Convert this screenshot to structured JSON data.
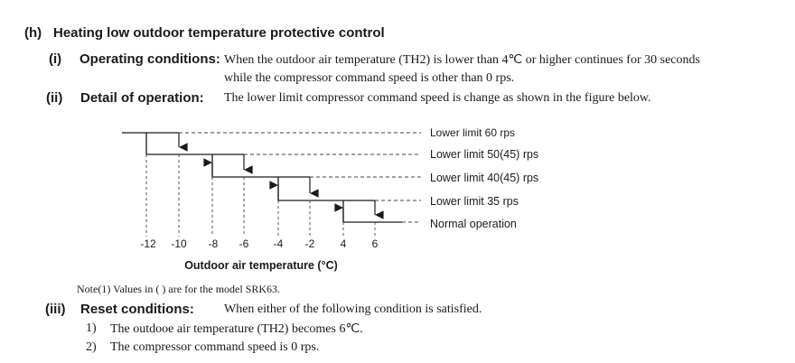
{
  "section": {
    "marker": "(h)",
    "title": "Heating low outdoor temperature protective control"
  },
  "operating": {
    "marker": "(i)",
    "label": "Operating conditions:",
    "line1": "When the outdoor air temperature (TH2) is lower than 4℃ or higher continues for 30 seconds",
    "line2": "while the compressor command speed is other than 0 rps."
  },
  "detail": {
    "marker": "(ii)",
    "label": "Detail of operation:",
    "text": "The lower limit compressor command speed is change as shown in the figure below."
  },
  "chart_data": {
    "type": "step-diagram",
    "xlabel": "Outdoor air temperature (°C)",
    "x_ticks": [
      "-12",
      "-10",
      "-8",
      "-6",
      "-4",
      "-2",
      "4",
      "6"
    ],
    "levels": [
      "Lower limit 60 rps",
      "Lower limit 50(45) rps",
      "Lower limit 40(45) rps",
      "Lower limit 35 rps",
      "Normal operation"
    ],
    "steps": [
      {
        "on_falling": "-10",
        "on_rising": "-12"
      },
      {
        "on_falling": "-6",
        "on_rising": "-8"
      },
      {
        "on_falling": "-2",
        "on_rising": "-4"
      },
      {
        "on_falling": "6",
        "on_rising": "4"
      }
    ]
  },
  "note": "Note(1)  Values in (  ) are for the model SRK63.",
  "reset": {
    "marker": "(iii)",
    "label": "Reset conditions:",
    "text": "When either of the following condition is satisfied.",
    "items": [
      {
        "num": "1)",
        "text": "The outdooe air temperature (TH2) becomes 6℃."
      },
      {
        "num": "2)",
        "text": "The compressor command speed is 0 rps."
      }
    ]
  }
}
